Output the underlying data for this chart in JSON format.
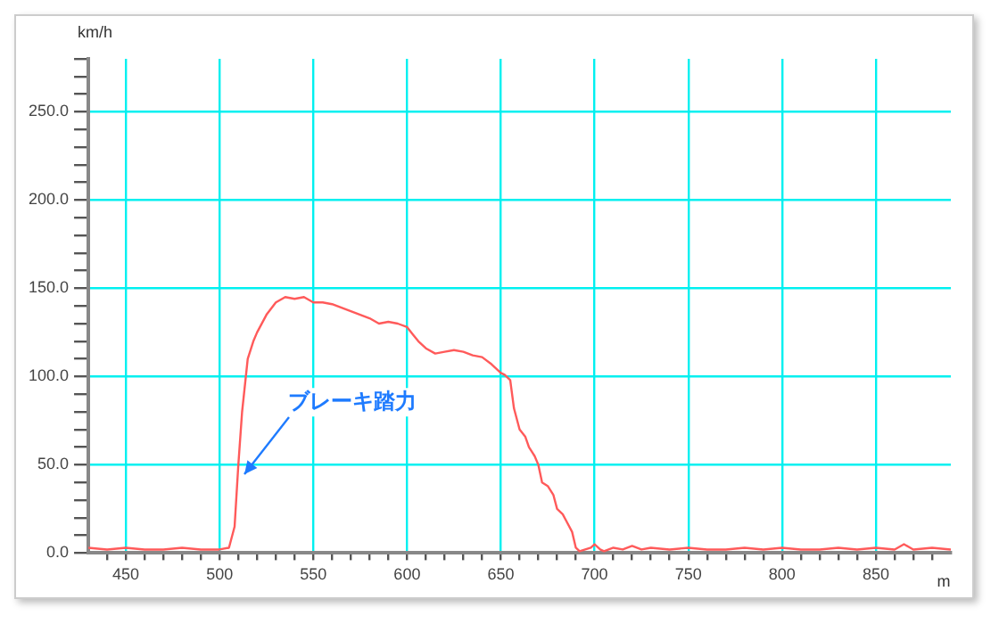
{
  "chart_data": {
    "type": "line",
    "xlabel": "m",
    "ylabel": "km/h",
    "x": [
      430,
      440,
      450,
      460,
      470,
      480,
      490,
      500,
      505,
      508,
      510,
      512,
      515,
      518,
      520,
      525,
      530,
      535,
      540,
      545,
      550,
      555,
      560,
      565,
      570,
      575,
      580,
      585,
      590,
      595,
      600,
      603,
      606,
      610,
      615,
      620,
      625,
      630,
      635,
      640,
      645,
      650,
      652,
      655,
      657,
      660,
      663,
      665,
      668,
      670,
      672,
      675,
      678,
      680,
      683,
      685,
      688,
      690,
      692,
      695,
      698,
      700,
      703,
      705,
      710,
      715,
      720,
      725,
      730,
      740,
      750,
      760,
      770,
      780,
      790,
      800,
      810,
      820,
      830,
      840,
      850,
      860,
      865,
      870,
      880,
      890
    ],
    "series": [
      {
        "color": "#ff5a5a",
        "values": [
          3,
          2,
          3,
          2,
          2,
          3,
          2,
          2,
          3,
          15,
          50,
          80,
          110,
          120,
          125,
          135,
          142,
          145,
          144,
          145,
          142,
          142,
          141,
          139,
          137,
          135,
          133,
          130,
          131,
          130,
          128,
          124,
          120,
          116,
          113,
          114,
          115,
          114,
          112,
          111,
          107,
          102,
          101,
          98,
          82,
          70,
          66,
          60,
          55,
          50,
          40,
          38,
          33,
          25,
          22,
          18,
          12,
          3,
          1,
          2,
          3,
          5,
          2,
          1,
          3,
          2,
          4,
          2,
          3,
          2,
          3,
          2,
          2,
          3,
          2,
          3,
          2,
          2,
          3,
          2,
          3,
          2,
          5,
          2,
          3,
          2
        ]
      }
    ],
    "annotations": [
      {
        "text": "ブレーキ踏力",
        "x": 512,
        "y": 45
      }
    ],
    "xlim": [
      430,
      890
    ],
    "ylim": [
      0,
      280
    ],
    "xticks": [
      {
        "value": 440,
        "label": null
      },
      {
        "value": 450,
        "label": "450"
      },
      {
        "value": 460,
        "label": null
      },
      {
        "value": 470,
        "label": null
      },
      {
        "value": 480,
        "label": null
      },
      {
        "value": 490,
        "label": null
      },
      {
        "value": 500,
        "label": "500"
      },
      {
        "value": 510,
        "label": null
      },
      {
        "value": 520,
        "label": null
      },
      {
        "value": 530,
        "label": null
      },
      {
        "value": 540,
        "label": null
      },
      {
        "value": 550,
        "label": "550"
      },
      {
        "value": 560,
        "label": null
      },
      {
        "value": 570,
        "label": null
      },
      {
        "value": 580,
        "label": null
      },
      {
        "value": 590,
        "label": null
      },
      {
        "value": 600,
        "label": "600"
      },
      {
        "value": 610,
        "label": null
      },
      {
        "value": 620,
        "label": null
      },
      {
        "value": 630,
        "label": null
      },
      {
        "value": 640,
        "label": null
      },
      {
        "value": 650,
        "label": "650"
      },
      {
        "value": 660,
        "label": null
      },
      {
        "value": 670,
        "label": null
      },
      {
        "value": 680,
        "label": null
      },
      {
        "value": 690,
        "label": null
      },
      {
        "value": 700,
        "label": "700"
      },
      {
        "value": 710,
        "label": null
      },
      {
        "value": 720,
        "label": null
      },
      {
        "value": 730,
        "label": null
      },
      {
        "value": 740,
        "label": null
      },
      {
        "value": 750,
        "label": "750"
      },
      {
        "value": 760,
        "label": null
      },
      {
        "value": 770,
        "label": null
      },
      {
        "value": 780,
        "label": null
      },
      {
        "value": 790,
        "label": null
      },
      {
        "value": 800,
        "label": "800"
      },
      {
        "value": 810,
        "label": null
      },
      {
        "value": 820,
        "label": null
      },
      {
        "value": 830,
        "label": null
      },
      {
        "value": 840,
        "label": null
      },
      {
        "value": 850,
        "label": "850"
      },
      {
        "value": 860,
        "label": null
      },
      {
        "value": 870,
        "label": null
      },
      {
        "value": 880,
        "label": null
      }
    ],
    "yticks": [
      {
        "value": 0,
        "label": "0.0"
      },
      {
        "value": 10,
        "label": null
      },
      {
        "value": 20,
        "label": null
      },
      {
        "value": 30,
        "label": null
      },
      {
        "value": 40,
        "label": null
      },
      {
        "value": 50,
        "label": "50.0"
      },
      {
        "value": 60,
        "label": null
      },
      {
        "value": 70,
        "label": null
      },
      {
        "value": 80,
        "label": null
      },
      {
        "value": 90,
        "label": null
      },
      {
        "value": 100,
        "label": "100.0"
      },
      {
        "value": 110,
        "label": null
      },
      {
        "value": 120,
        "label": null
      },
      {
        "value": 130,
        "label": null
      },
      {
        "value": 140,
        "label": null
      },
      {
        "value": 150,
        "label": "150.0"
      },
      {
        "value": 160,
        "label": null
      },
      {
        "value": 170,
        "label": null
      },
      {
        "value": 180,
        "label": null
      },
      {
        "value": 190,
        "label": null
      },
      {
        "value": 200,
        "label": "200.0"
      },
      {
        "value": 210,
        "label": null
      },
      {
        "value": 220,
        "label": null
      },
      {
        "value": 230,
        "label": null
      },
      {
        "value": 240,
        "label": null
      },
      {
        "value": 250,
        "label": "250.0"
      },
      {
        "value": 260,
        "label": null
      },
      {
        "value": 270,
        "label": null
      },
      {
        "value": 280,
        "label": null
      }
    ],
    "grid": true,
    "legend": false,
    "marker": "none",
    "line_style": "solid"
  }
}
